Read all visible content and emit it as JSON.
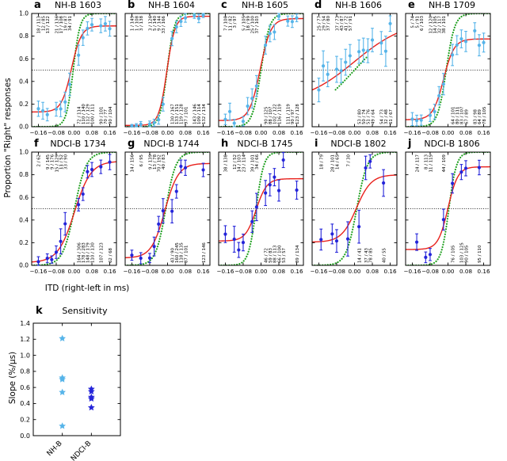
{
  "figure": {
    "background": "#ffffff"
  },
  "colors": {
    "nh_points": "#56b4e9",
    "ndci_points": "#2424d9",
    "red_fit": "#e8211c",
    "green_fit": "#1fa01f",
    "axis": "#000000",
    "chance_line": "#000000"
  },
  "axes": {
    "ylabel": "Proportion \"Right\" responses",
    "xlabel": "ITD (right-left in ms)",
    "xlim": [
      -0.19,
      0.19
    ],
    "ylim": [
      0,
      1
    ],
    "xticks": [
      -0.16,
      -0.08,
      0,
      0.08,
      0.16
    ],
    "xtick_labels": [
      "−0.16",
      "−0.08",
      "0.00",
      "0.08",
      "0.16"
    ],
    "yticks": [
      0,
      0.2,
      0.4,
      0.6,
      0.8,
      1
    ],
    "ytick_labels": [
      "0.0",
      "0.2",
      "0.4",
      "0.6",
      "0.8",
      "1.0"
    ],
    "chance_level": 0.5
  },
  "chart_data": [
    {
      "type": "psychometric",
      "id": "a",
      "letter": "a",
      "title": "NH-B 1603",
      "group": "NH",
      "points": [
        [
          -0.16,
          18,
          113
        ],
        [
          -0.14,
          12,
          85
        ],
        [
          -0.12,
          13,
          122
        ],
        [
          -0.08,
          21,
          136
        ],
        [
          -0.06,
          17,
          108
        ],
        [
          -0.04,
          19,
          87
        ],
        [
          -0.02,
          34,
          91
        ],
        [
          0.02,
          72,
          114
        ],
        [
          0.04,
          110,
          140
        ],
        [
          0.06,
          112,
          129
        ],
        [
          0.08,
          100,
          111
        ],
        [
          0.12,
          90,
          101
        ],
        [
          0.14,
          70,
          77
        ],
        [
          0.16,
          90,
          104
        ]
      ],
      "red_fit": {
        "lower": 0.13,
        "upper": 0.89,
        "x0": -0.012,
        "k": 45
      },
      "green_fit": {
        "x0": -0.004,
        "k": 65
      }
    },
    {
      "type": "psychometric",
      "id": "b",
      "letter": "b",
      "title": "NH-B 1604",
      "group": "NH",
      "points": [
        [
          -0.16,
          1,
          149
        ],
        [
          -0.14,
          1,
          108
        ],
        [
          -0.12,
          3,
          138
        ],
        [
          -0.08,
          3,
          126
        ],
        [
          -0.06,
          5,
          140
        ],
        [
          -0.04,
          9,
          144
        ],
        [
          -0.02,
          33,
          166
        ],
        [
          0.02,
          130,
          167
        ],
        [
          0.04,
          133,
          151
        ],
        [
          0.06,
          119,
          128
        ],
        [
          0.08,
          97,
          101
        ],
        [
          0.12,
          143,
          146
        ],
        [
          0.14,
          109,
          114
        ],
        [
          0.16,
          132,
          134
        ]
      ],
      "red_fit": {
        "lower": 0.012,
        "upper": 0.975,
        "x0": -0.003,
        "k": 55
      },
      "green_fit": {
        "x0": -0.002,
        "k": 62
      }
    },
    {
      "type": "psychometric",
      "id": "c",
      "letter": "c",
      "title": "NH-B 1605",
      "group": "NH",
      "points": [
        [
          -0.16,
          7,
          108
        ],
        [
          -0.14,
          11,
          82
        ],
        [
          -0.12,
          3,
          97
        ],
        [
          -0.08,
          5,
          105
        ],
        [
          -0.06,
          18,
          99
        ],
        [
          -0.04,
          25,
          100
        ],
        [
          -0.02,
          37,
          103
        ],
        [
          0.02,
          90,
          125
        ],
        [
          0.04,
          88,
          107
        ],
        [
          0.06,
          102,
          122
        ],
        [
          0.08,
          116,
          119
        ],
        [
          0.12,
          111,
          119
        ],
        [
          0.14,
          90,
          97
        ],
        [
          0.16,
          123,
          128
        ]
      ],
      "red_fit": {
        "lower": 0.055,
        "upper": 0.955,
        "x0": -0.004,
        "k": 42
      },
      "green_fit": {
        "x0": 0.0,
        "k": 52
      }
    },
    {
      "type": "psychometric",
      "id": "d",
      "letter": "d",
      "title": "NH-B 1606",
      "group": "NH",
      "points": [
        [
          -0.16,
          25,
          77
        ],
        [
          -0.14,
          29,
          54
        ],
        [
          -0.12,
          37,
          80
        ],
        [
          -0.08,
          37,
          73
        ],
        [
          -0.06,
          43,
          87
        ],
        [
          -0.04,
          41,
          72
        ],
        [
          -0.02,
          57,
          91
        ],
        [
          0.02,
          53,
          80
        ],
        [
          0.04,
          50,
          74
        ],
        [
          0.06,
          51,
          76
        ],
        [
          0.08,
          49,
          64
        ],
        [
          0.12,
          54,
          73
        ],
        [
          0.14,
          32,
          48
        ],
        [
          0.16,
          61,
          67
        ]
      ],
      "red_fit": {
        "lower": 0.2,
        "upper": 0.95,
        "x0": 0.0,
        "k": 8.5
      },
      "green_fit": {
        "x0": 0.0,
        "k": 8.5,
        "xrange": [
          -0.085,
          0.055
        ]
      }
    },
    {
      "type": "psychometric",
      "id": "e",
      "letter": "e",
      "title": "NH-B 1709",
      "group": "NH",
      "points": [
        [
          -0.16,
          5,
          74
        ],
        [
          -0.14,
          5,
          91
        ],
        [
          -0.12,
          6,
          103
        ],
        [
          -0.08,
          12,
          120
        ],
        [
          -0.06,
          14,
          105
        ],
        [
          -0.04,
          32,
          117
        ],
        [
          -0.02,
          38,
          101
        ],
        [
          0.02,
          64,
          101
        ],
        [
          0.04,
          80,
          111
        ],
        [
          0.06,
          83,
          107
        ],
        [
          0.08,
          67,
          89
        ],
        [
          0.12,
          83,
          98
        ],
        [
          0.14,
          64,
          89
        ],
        [
          0.16,
          78,
          105
        ]
      ],
      "red_fit": {
        "lower": 0.062,
        "upper": 0.775,
        "x0": -0.02,
        "k": 42
      },
      "green_fit": {
        "x0": -0.008,
        "k": 52
      }
    },
    {
      "type": "psychometric",
      "id": "f",
      "letter": "f",
      "title": "NDCI-B 1734",
      "group": "NDCI",
      "points": [
        [
          -0.16,
          2,
          62
        ],
        [
          -0.12,
          9,
          145
        ],
        [
          -0.1,
          9,
          176
        ],
        [
          -0.08,
          15,
          129
        ],
        [
          -0.06,
          11,
          52
        ],
        [
          -0.04,
          33,
          90
        ],
        [
          0.02,
          164,
          306
        ],
        [
          0.04,
          178,
          283
        ],
        [
          0.06,
          148,
          179
        ],
        [
          0.08,
          110,
          130
        ],
        [
          0.12,
          107,
          123
        ],
        [
          0.16,
          62,
          68
        ]
      ],
      "red_fit": {
        "lower": 0.025,
        "upper": 0.92,
        "x0": 0.002,
        "k": 27
      },
      "green_fit": {
        "x0": 0.002,
        "k": 38
      }
    },
    {
      "type": "psychometric",
      "id": "g",
      "letter": "g",
      "title": "NDCI-B 1744",
      "group": "NDCI",
      "points": [
        [
          -0.16,
          14,
          156
        ],
        [
          -0.12,
          6,
          95
        ],
        [
          -0.08,
          9,
          139
        ],
        [
          -0.06,
          13,
          78
        ],
        [
          -0.04,
          70,
          192
        ],
        [
          -0.02,
          40,
          83
        ],
        [
          0.02,
          43,
          90
        ],
        [
          0.04,
          160,
          245
        ],
        [
          0.06,
          118,
          135
        ],
        [
          0.08,
          87,
          101
        ],
        [
          0.16,
          123,
          146
        ]
      ],
      "red_fit": {
        "lower": 0.065,
        "upper": 0.9,
        "x0": -0.012,
        "k": 33
      },
      "green_fit": {
        "x0": -0.008,
        "k": 44
      }
    },
    {
      "type": "psychometric",
      "id": "h",
      "letter": "h",
      "title": "NDCI-B 1745",
      "group": "NDCI",
      "points": [
        [
          -0.16,
          38,
          138
        ],
        [
          -0.12,
          12,
          52
        ],
        [
          -0.1,
          14,
          103
        ],
        [
          -0.08,
          23,
          114
        ],
        [
          -0.04,
          39,
          101
        ],
        [
          -0.02,
          34,
          66
        ],
        [
          0.02,
          46,
          72
        ],
        [
          0.04,
          59,
          83
        ],
        [
          0.06,
          88,
          113
        ],
        [
          0.08,
          66,
          100
        ],
        [
          0.1,
          53,
          57
        ],
        [
          0.16,
          89,
          134
        ]
      ],
      "red_fit": {
        "lower": 0.215,
        "upper": 0.765,
        "x0": -0.022,
        "k": 42
      },
      "green_fit": {
        "x0": -0.022,
        "k": 58
      }
    },
    {
      "type": "psychometric",
      "id": "i",
      "letter": "i",
      "title": "NDCI-B 1802",
      "group": "NDCI",
      "points": [
        [
          -0.15,
          18,
          79
        ],
        [
          -0.1,
          28,
          101
        ],
        [
          -0.08,
          14,
          65
        ],
        [
          -0.03,
          7,
          30
        ],
        [
          0.02,
          14,
          41
        ],
        [
          0.05,
          37,
          43
        ],
        [
          0.07,
          78,
          85
        ],
        [
          0.13,
          40,
          55
        ]
      ],
      "red_fit": {
        "lower": 0.205,
        "upper": 0.8,
        "x0": 0.008,
        "k": 30
      },
      "green_fit": {
        "x0": 0.01,
        "k": 42
      }
    },
    {
      "type": "psychometric",
      "id": "j",
      "letter": "j",
      "title": "NDCI-B 1806",
      "group": "NDCI",
      "points": [
        [
          -0.14,
          24,
          117
        ],
        [
          -0.1,
          8,
          113
        ],
        [
          -0.08,
          11,
          115
        ],
        [
          -0.02,
          44,
          109
        ],
        [
          0.02,
          76,
          105
        ],
        [
          0.06,
          103,
          125
        ],
        [
          0.08,
          90,
          105
        ],
        [
          0.14,
          95,
          110
        ]
      ],
      "red_fit": {
        "lower": 0.14,
        "upper": 0.87,
        "x0": 0.0,
        "k": 45
      },
      "green_fit": {
        "x0": 0.004,
        "k": 58
      }
    },
    {
      "type": "scatter",
      "id": "k",
      "letter": "k",
      "title": "Sensitivity",
      "ylabel": "Slope (%/µs)",
      "ylim": [
        0,
        1.4
      ],
      "yticks": [
        0,
        0.2,
        0.4,
        0.6,
        0.8,
        1.0,
        1.2,
        1.4
      ],
      "ytick_labels": [
        "0.0",
        "0.2",
        "0.4",
        "0.6",
        "0.8",
        "1.0",
        "1.2",
        "1.4"
      ],
      "categories": [
        "NH-B",
        "NDCI-B"
      ],
      "series": [
        {
          "name": "NH-B",
          "color": "#56b4e9",
          "values": [
            1.21,
            0.72,
            0.7,
            0.54,
            0.12
          ]
        },
        {
          "name": "NDCI-B",
          "color": "#2424d9",
          "values": [
            0.58,
            0.55,
            0.48,
            0.46,
            0.35
          ]
        }
      ]
    }
  ]
}
